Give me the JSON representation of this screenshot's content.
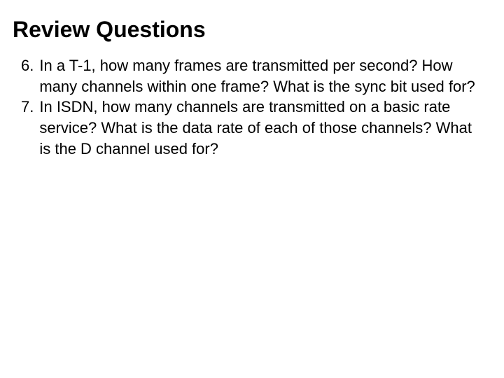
{
  "title": "Review Questions",
  "title_fontsize": 32,
  "title_color": "#000000",
  "body_fontsize": 22,
  "body_color": "#000000",
  "background_color": "#ffffff",
  "font_family": "Verdana, Geneva, sans-serif",
  "questions": [
    {
      "number": "6.",
      "text": "In a T-1, how many frames are transmitted per second?  How many channels within one frame?  What is the sync bit used for?"
    },
    {
      "number": "7.",
      "text": "In ISDN, how many channels are transmitted on a basic rate service?  What is the data rate of each of those channels?  What is the D channel used for?"
    }
  ]
}
